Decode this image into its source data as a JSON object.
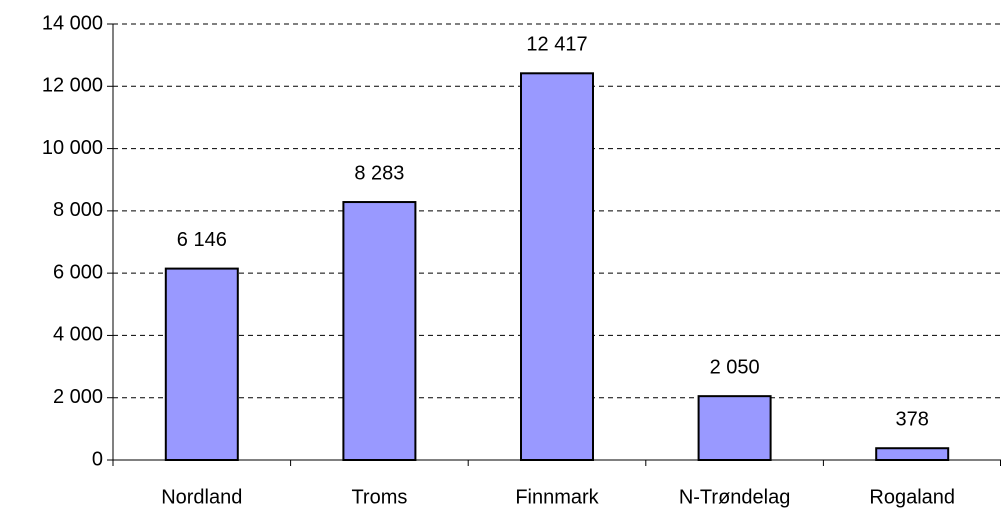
{
  "chart_data": {
    "type": "bar",
    "categories": [
      "Nordland",
      "Troms",
      "Finnmark",
      "N-Trøndelag",
      "Rogaland"
    ],
    "values": [
      6146,
      8283,
      12417,
      2050,
      378
    ],
    "value_labels": [
      "6 146",
      "8 283",
      "12 417",
      "2 050",
      "378"
    ],
    "color": "#9999ff",
    "ylim": [
      0,
      14000
    ],
    "yticks": [
      0,
      {
        "value": 2000,
        "label": "2 000"
      },
      {
        "value": 4000,
        "label": "4 000"
      },
      {
        "value": 6000,
        "label": "6 000"
      },
      {
        "value": 8000,
        "label": "8 000"
      },
      {
        "value": 10000,
        "label": "10 000"
      },
      {
        "value": 12000,
        "label": "12 000"
      },
      {
        "value": 14000,
        "label": "14 000"
      }
    ],
    "grid": true
  }
}
